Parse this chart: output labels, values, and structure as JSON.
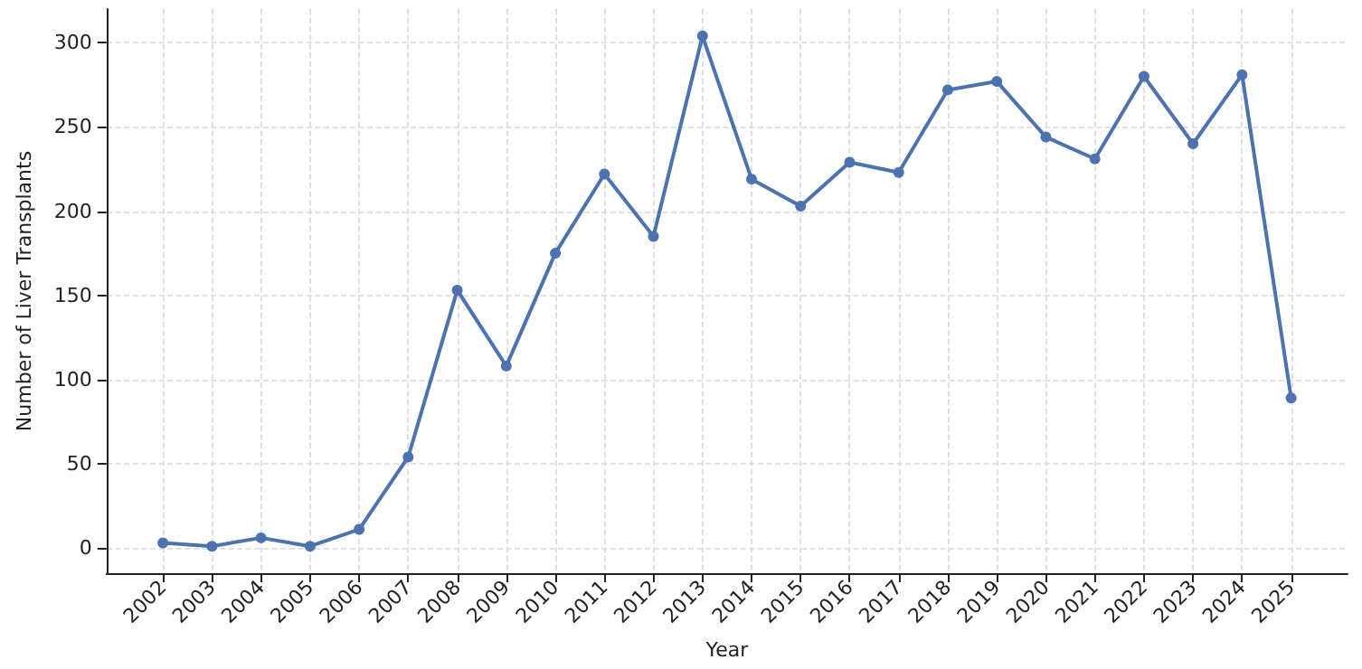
{
  "chart_data": {
    "type": "line",
    "xlabel": "Year",
    "ylabel": "Number of Liver Transplants",
    "x": [
      2002,
      2003,
      2004,
      2005,
      2006,
      2007,
      2008,
      2009,
      2010,
      2011,
      2012,
      2013,
      2014,
      2015,
      2016,
      2017,
      2018,
      2019,
      2020,
      2021,
      2022,
      2023,
      2024,
      2025
    ],
    "series": [
      {
        "color": "#4c72b0",
        "values": [
          3,
          1,
          6,
          1,
          11,
          54,
          153,
          108,
          175,
          222,
          185,
          304,
          219,
          203,
          229,
          223,
          272,
          277,
          244,
          231,
          280,
          240,
          281,
          89
        ]
      }
    ],
    "xlim": [
      2000.85,
      2026.15
    ],
    "xticks": [
      2002,
      2003,
      2004,
      2005,
      2006,
      2007,
      2008,
      2009,
      2010,
      2011,
      2012,
      2013,
      2014,
      2015,
      2016,
      2017,
      2018,
      2019,
      2020,
      2021,
      2022,
      2023,
      2024,
      2025
    ],
    "ylim": [
      -15,
      320
    ],
    "yticks": [
      0,
      50,
      100,
      150,
      200,
      250,
      300
    ],
    "grid": true,
    "marker": "circle",
    "line_style": "solid"
  }
}
